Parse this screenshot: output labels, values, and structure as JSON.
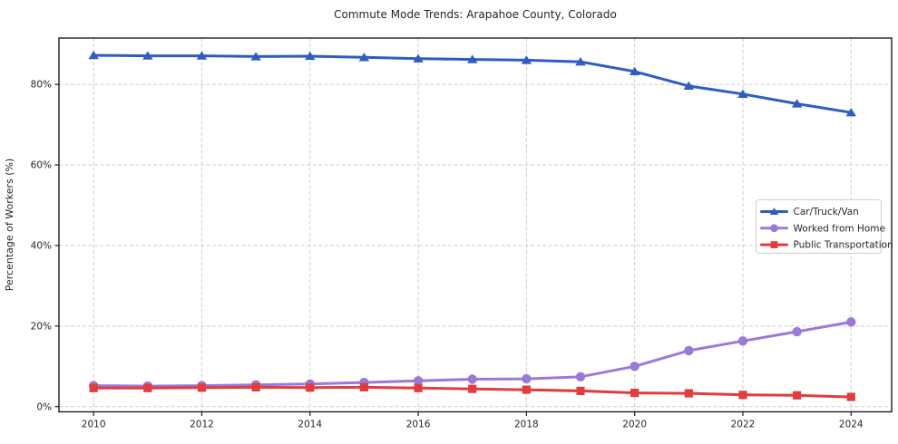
{
  "title": "Commute Mode Trends: Arapahoe County, Colorado",
  "chart_data": {
    "type": "line",
    "title": "Commute Mode Trends: Arapahoe County, Colorado",
    "xlabel": "",
    "ylabel": "Percentage of Workers (%)",
    "x": [
      2010,
      2011,
      2012,
      2013,
      2014,
      2015,
      2016,
      2017,
      2018,
      2019,
      2020,
      2021,
      2022,
      2023,
      2024
    ],
    "series": [
      {
        "name": "Car/Truck/Van",
        "color": "#2d5dbf",
        "marker": "triangle",
        "values": [
          87.2,
          87.1,
          87.1,
          86.9,
          87.0,
          86.7,
          86.4,
          86.2,
          86.0,
          85.6,
          83.2,
          79.6,
          77.6,
          75.2,
          73.0
        ]
      },
      {
        "name": "Worked from Home",
        "color": "#9a79d8",
        "marker": "circle",
        "values": [
          5.2,
          5.1,
          5.2,
          5.4,
          5.6,
          6.0,
          6.4,
          6.8,
          6.9,
          7.4,
          10.0,
          13.9,
          16.3,
          18.6,
          21.0
        ]
      },
      {
        "name": "Public Transportation",
        "color": "#e23c3c",
        "marker": "square",
        "values": [
          4.6,
          4.6,
          4.7,
          4.8,
          4.7,
          4.8,
          4.6,
          4.4,
          4.2,
          3.9,
          3.4,
          3.3,
          2.9,
          2.8,
          2.4
        ]
      }
    ],
    "x_ticks": [
      2010,
      2012,
      2014,
      2016,
      2018,
      2020,
      2022,
      2024
    ],
    "x_tick_labels": [
      "2010",
      "2012",
      "2014",
      "2016",
      "2018",
      "2020",
      "2022",
      "2024"
    ],
    "y_ticks": [
      0,
      20,
      40,
      60,
      80
    ],
    "y_tick_labels": [
      "0%",
      "20%",
      "40%",
      "60%",
      "80%"
    ],
    "xlim": [
      2009.36,
      2024.75
    ],
    "ylim": [
      -1.3,
      91.5
    ],
    "grid": true,
    "grid_style": "dashed",
    "legend_position": "center-right",
    "colors": {
      "grid": "#cccccc",
      "spine": "#1f1f1f",
      "text": "#262626",
      "background": "#ffffff",
      "legend_border": "#cccccc",
      "legend_background": "#ffffff"
    }
  }
}
